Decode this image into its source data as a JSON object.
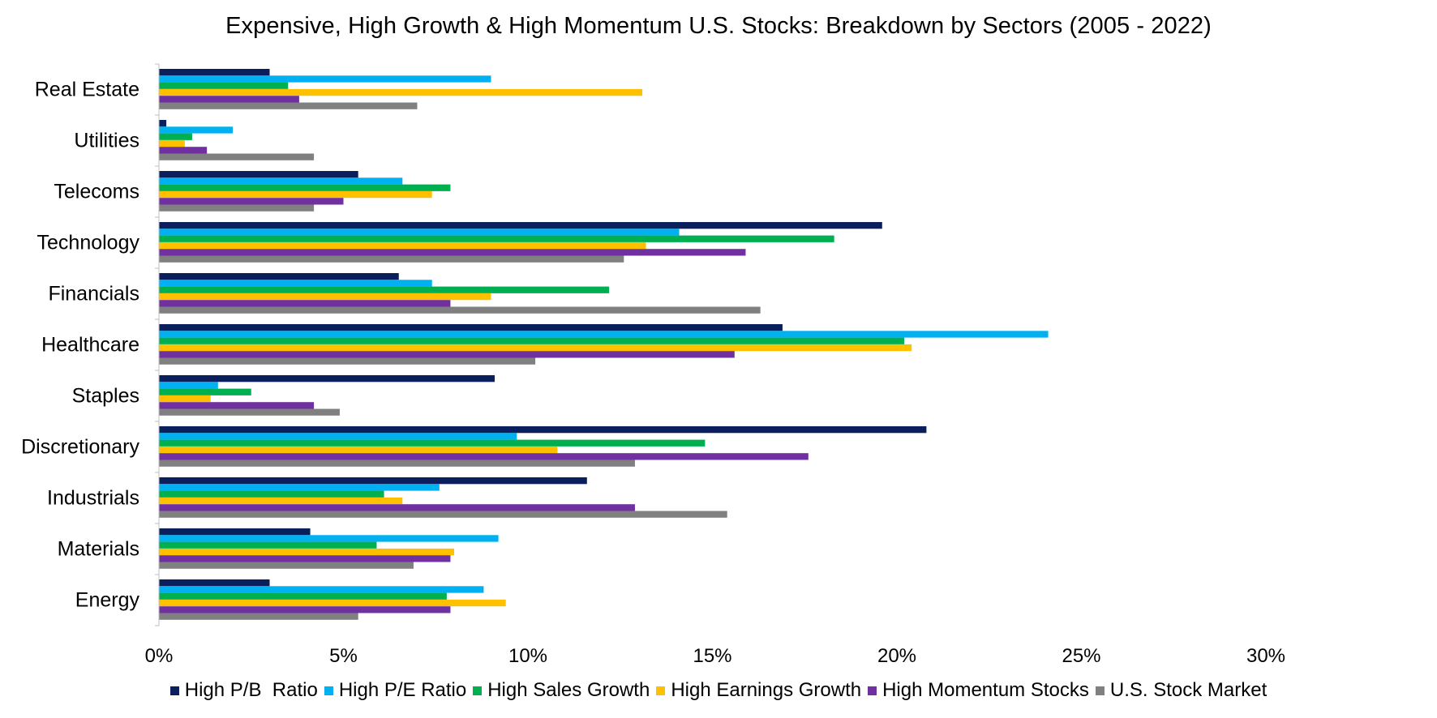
{
  "chart_data": {
    "type": "bar",
    "orientation": "horizontal",
    "title": "Expensive, High Growth & High Momentum U.S. Stocks: Breakdown by Sectors (2005 - 2022)",
    "xlabel": "",
    "ylabel": "",
    "xlim": [
      0,
      30
    ],
    "x_ticks": [
      "0%",
      "5%",
      "10%",
      "15%",
      "20%",
      "25%",
      "30%"
    ],
    "x_tick_values": [
      0,
      5,
      10,
      15,
      20,
      25,
      30
    ],
    "grid": false,
    "legend_position": "bottom",
    "categories": [
      "Real Estate",
      "Utilities",
      "Telecoms",
      "Technology",
      "Financials",
      "Healthcare",
      "Staples",
      "Discretionary",
      "Industrials",
      "Materials",
      "Energy"
    ],
    "series": [
      {
        "name": "High P/B  Ratio",
        "color": "#0b1f5c",
        "values": [
          3.0,
          0.2,
          5.4,
          19.6,
          6.5,
          16.9,
          9.1,
          20.8,
          11.6,
          4.1,
          3.0
        ]
      },
      {
        "name": "High P/E Ratio",
        "color": "#00b0f0",
        "values": [
          9.0,
          2.0,
          6.6,
          14.1,
          7.4,
          24.1,
          1.6,
          9.7,
          7.6,
          9.2,
          8.8
        ]
      },
      {
        "name": "High Sales Growth",
        "color": "#00b050",
        "values": [
          3.5,
          0.9,
          7.9,
          18.3,
          12.2,
          20.2,
          2.5,
          14.8,
          6.1,
          5.9,
          7.8
        ]
      },
      {
        "name": "High Earnings Growth",
        "color": "#ffc000",
        "values": [
          13.1,
          0.7,
          7.4,
          13.2,
          9.0,
          20.4,
          1.4,
          10.8,
          6.6,
          8.0,
          9.4
        ]
      },
      {
        "name": "High Momentum Stocks",
        "color": "#7030a0",
        "values": [
          3.8,
          1.3,
          5.0,
          15.9,
          7.9,
          15.6,
          4.2,
          17.6,
          12.9,
          7.9,
          7.9
        ]
      },
      {
        "name": "U.S. Stock Market",
        "color": "#808080",
        "values": [
          7.0,
          4.2,
          4.2,
          12.6,
          16.3,
          10.2,
          4.9,
          12.9,
          15.4,
          6.9,
          5.4
        ]
      }
    ]
  }
}
